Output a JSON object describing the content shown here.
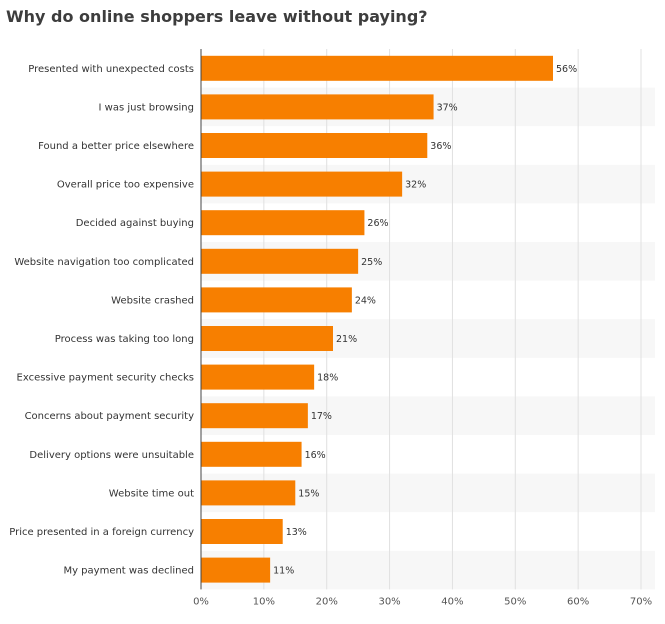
{
  "chart_data": {
    "type": "bar",
    "orientation": "horizontal",
    "title": "Why do online shoppers leave without paying?",
    "categories": [
      "Presented with unexpected costs",
      "I was just browsing",
      "Found a better price elsewhere",
      "Overall price too expensive",
      "Decided against buying",
      "Website navigation too complicated",
      "Website crashed",
      "Process was taking too long",
      "Excessive payment security checks",
      "Concerns about payment security",
      "Delivery options were unsuitable",
      "Website time out",
      "Price presented in a foreign currency",
      "My payment was declined"
    ],
    "values": [
      56,
      37,
      36,
      32,
      26,
      25,
      24,
      21,
      18,
      17,
      16,
      15,
      13,
      11
    ],
    "value_labels": [
      "56%",
      "37%",
      "36%",
      "32%",
      "26%",
      "25%",
      "24%",
      "21%",
      "18%",
      "17%",
      "16%",
      "15%",
      "13%",
      "11%"
    ],
    "xlim": [
      0,
      70
    ],
    "x_ticks": [
      0,
      10,
      20,
      30,
      40,
      50,
      60,
      70
    ],
    "x_tick_labels": [
      "0%",
      "10%",
      "20%",
      "30%",
      "40%",
      "50%",
      "60%",
      "70%"
    ],
    "grid": true,
    "alternating_row_bands": true,
    "bar_color": "#f77f00",
    "band_color": "#f7f7f7",
    "grid_color": "#e0e0e0"
  }
}
